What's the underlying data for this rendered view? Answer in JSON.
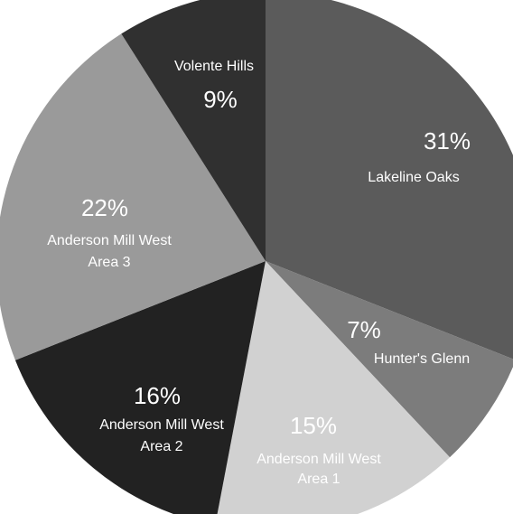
{
  "chart_data": {
    "type": "pie",
    "title": "",
    "start_angle_deg": 0,
    "direction": "clockwise",
    "slices": [
      {
        "label": "Lakeline Oaks",
        "value": 31,
        "value_label": "31%",
        "color": "#5b5b5b",
        "label_color": "#ffffff"
      },
      {
        "label": "Hunter's Glenn",
        "value": 7,
        "value_label": "7%",
        "color": "#7c7c7c",
        "label_color": "#ffffff"
      },
      {
        "label": "Anderson Mill West Area 1",
        "value": 15,
        "value_label": "15%",
        "color": "#d1d1d1",
        "label_color": "#ffffff"
      },
      {
        "label": "Anderson Mill West Area 2",
        "value": 16,
        "value_label": "16%",
        "color": "#222222",
        "label_color": "#ffffff"
      },
      {
        "label": "Anderson Mill West Area 3",
        "value": 22,
        "value_label": "22%",
        "color": "#9a9a9a",
        "label_color": "#ffffff"
      },
      {
        "label": "Volente Hills",
        "value": 9,
        "value_label": "9%",
        "color": "#303030",
        "label_color": "#ffffff"
      }
    ]
  }
}
